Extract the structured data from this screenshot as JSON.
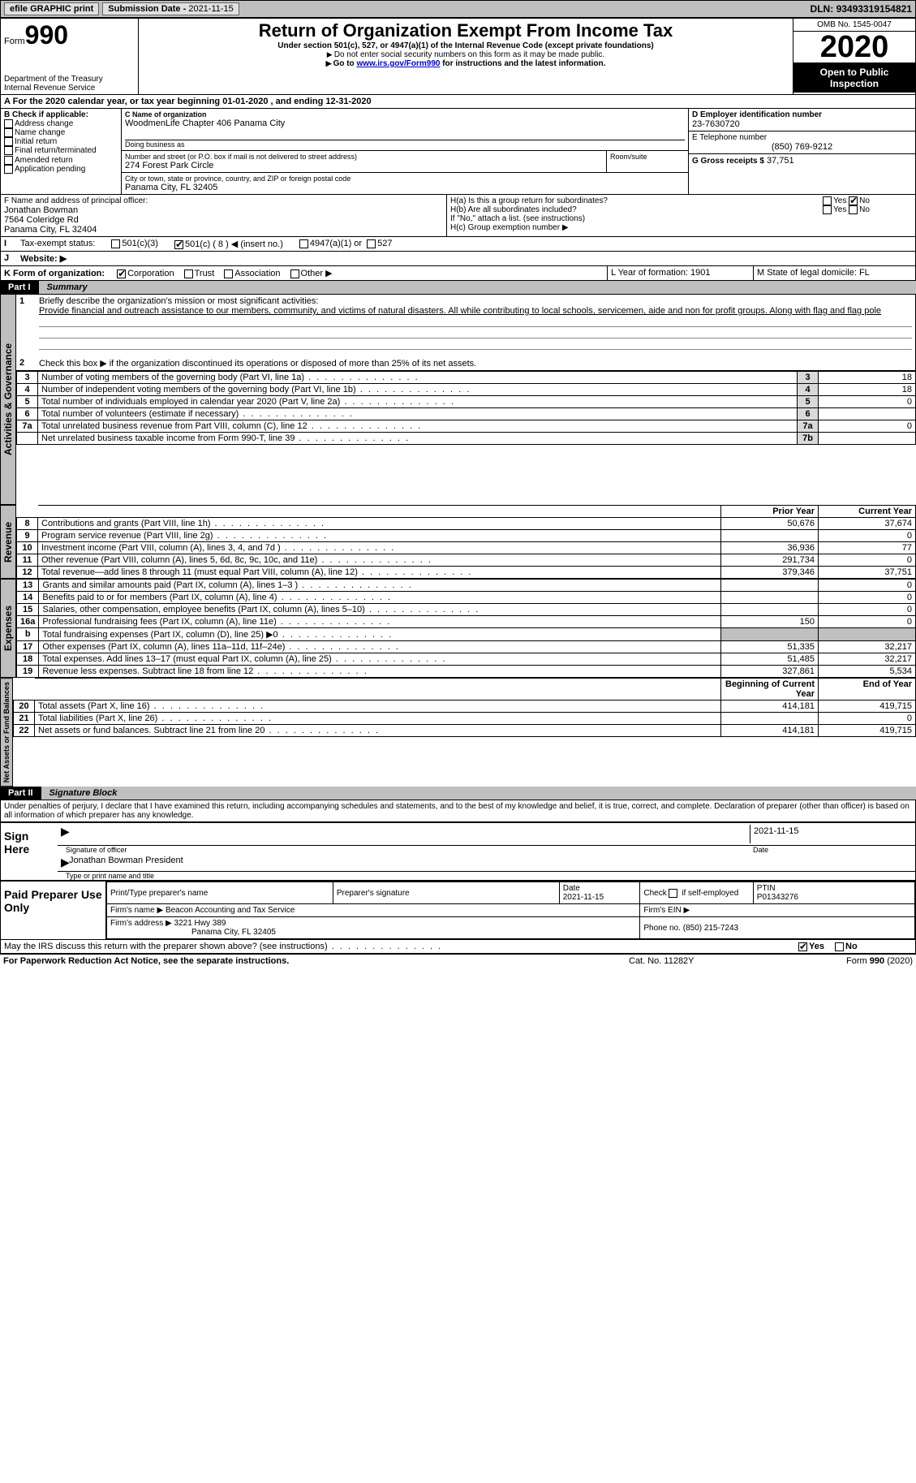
{
  "topbar": {
    "efile": "efile GRAPHIC print",
    "sub_label": "Submission Date -",
    "sub_date": "2021-11-15",
    "dln_label": "DLN:",
    "dln": "93493319154821"
  },
  "header": {
    "form_word": "Form",
    "form_no": "990",
    "dept1": "Department of the Treasury",
    "dept2": "Internal Revenue Service",
    "title": "Return of Organization Exempt From Income Tax",
    "subtitle": "Under section 501(c), 527, or 4947(a)(1) of the Internal Revenue Code (except private foundations)",
    "note1": "Do not enter social security numbers on this form as it may be made public.",
    "note2_pre": "Go to ",
    "note2_link": "www.irs.gov/Form990",
    "note2_post": " for instructions and the latest information.",
    "omb": "OMB No. 1545-0047",
    "year": "2020",
    "open": "Open to Public Inspection"
  },
  "periodA": "For the 2020 calendar year, or tax year beginning 01-01-2020    , and ending 12-31-2020",
  "boxB": {
    "title": "B Check if applicable:",
    "items": [
      "Address change",
      "Name change",
      "Initial return",
      "Final return/terminated",
      "Amended return",
      "Application pending"
    ]
  },
  "boxC": {
    "label": "C Name of organization",
    "name": "WoodmenLife Chapter 406 Panama City",
    "dba": "Doing business as",
    "addr_label": "Number and street (or P.O. box if mail is not delivered to street address)",
    "addr": "274 Forest Park Circle",
    "room_label": "Room/suite",
    "city_label": "City or town, state or province, country, and ZIP or foreign postal code",
    "city": "Panama City, FL  32405"
  },
  "boxD": {
    "label": "D Employer identification number",
    "val": "23-7630720"
  },
  "boxE": {
    "label": "E Telephone number",
    "val": "(850) 769-9212"
  },
  "boxG": {
    "label": "G Gross receipts $",
    "val": "37,751"
  },
  "boxF": {
    "label": "F  Name and address of principal officer:",
    "name": "Jonathan Bowman",
    "addr1": "7564 Coleridge Rd",
    "addr2": "Panama City, FL  32404"
  },
  "boxH": {
    "ha": "H(a)  Is this a group return for subordinates?",
    "hb": "H(b)  Are all subordinates included?",
    "hb_note": "If \"No,\" attach a list. (see instructions)",
    "hc": "H(c)  Group exemption number ▶",
    "yes": "Yes",
    "no": "No"
  },
  "boxI": {
    "label": "Tax-exempt status:",
    "opt1": "501(c)(3)",
    "opt2": "501(c) ( 8 ) ◀ (insert no.)",
    "opt3": "4947(a)(1) or",
    "opt4": "527"
  },
  "boxJ": "Website: ▶",
  "boxK": {
    "label": "K Form of organization:",
    "opts": [
      "Corporation",
      "Trust",
      "Association",
      "Other ▶"
    ]
  },
  "boxL": "L Year of formation: 1901",
  "boxM": "M State of legal domicile: FL",
  "part1": {
    "label": "Part I",
    "title": "Summary"
  },
  "summary": {
    "q1_label": "Briefly describe the organization's mission or most significant activities:",
    "q1_text": "Provide financial and outreach assistance to our members, community, and victims of natural disasters. All while contributing to local schools, servicemen, aide and non for profit groups. Along with flag and flag pole",
    "q2": "Check this box ▶      if the organization discontinued its operations or disposed of more than 25% of its net assets.",
    "rows_ag": [
      {
        "n": "3",
        "t": "Number of voting members of the governing body (Part VI, line 1a)",
        "box": "3",
        "v": "18"
      },
      {
        "n": "4",
        "t": "Number of independent voting members of the governing body (Part VI, line 1b)",
        "box": "4",
        "v": "18"
      },
      {
        "n": "5",
        "t": "Total number of individuals employed in calendar year 2020 (Part V, line 2a)",
        "box": "5",
        "v": "0"
      },
      {
        "n": "6",
        "t": "Total number of volunteers (estimate if necessary)",
        "box": "6",
        "v": ""
      },
      {
        "n": "7a",
        "t": "Total unrelated business revenue from Part VIII, column (C), line 12",
        "box": "7a",
        "v": "0"
      },
      {
        "n": "",
        "t": "Net unrelated business taxable income from Form 990-T, line 39",
        "box": "7b",
        "v": ""
      }
    ],
    "col_prior": "Prior Year",
    "col_current": "Current Year",
    "rows_rev": [
      {
        "n": "8",
        "t": "Contributions and grants (Part VIII, line 1h)",
        "p": "50,676",
        "c": "37,674"
      },
      {
        "n": "9",
        "t": "Program service revenue (Part VIII, line 2g)",
        "p": "",
        "c": "0"
      },
      {
        "n": "10",
        "t": "Investment income (Part VIII, column (A), lines 3, 4, and 7d )",
        "p": "36,936",
        "c": "77"
      },
      {
        "n": "11",
        "t": "Other revenue (Part VIII, column (A), lines 5, 6d, 8c, 9c, 10c, and 11e)",
        "p": "291,734",
        "c": "0"
      },
      {
        "n": "12",
        "t": "Total revenue—add lines 8 through 11 (must equal Part VIII, column (A), line 12)",
        "p": "379,346",
        "c": "37,751"
      }
    ],
    "rows_exp": [
      {
        "n": "13",
        "t": "Grants and similar amounts paid (Part IX, column (A), lines 1–3 )",
        "p": "",
        "c": "0"
      },
      {
        "n": "14",
        "t": "Benefits paid to or for members (Part IX, column (A), line 4)",
        "p": "",
        "c": "0"
      },
      {
        "n": "15",
        "t": "Salaries, other compensation, employee benefits (Part IX, column (A), lines 5–10)",
        "p": "",
        "c": "0"
      },
      {
        "n": "16a",
        "t": "Professional fundraising fees (Part IX, column (A), line 11e)",
        "p": "150",
        "c": "0"
      },
      {
        "n": "b",
        "t": "Total fundraising expenses (Part IX, column (D), line 25) ▶0",
        "p": "SHADE",
        "c": "SHADE"
      },
      {
        "n": "17",
        "t": "Other expenses (Part IX, column (A), lines 11a–11d, 11f–24e)",
        "p": "51,335",
        "c": "32,217"
      },
      {
        "n": "18",
        "t": "Total expenses. Add lines 13–17 (must equal Part IX, column (A), line 25)",
        "p": "51,485",
        "c": "32,217"
      },
      {
        "n": "19",
        "t": "Revenue less expenses. Subtract line 18 from line 12",
        "p": "327,861",
        "c": "5,534"
      }
    ],
    "col_begin": "Beginning of Current Year",
    "col_end": "End of Year",
    "rows_na": [
      {
        "n": "20",
        "t": "Total assets (Part X, line 16)",
        "p": "414,181",
        "c": "419,715"
      },
      {
        "n": "21",
        "t": "Total liabilities (Part X, line 26)",
        "p": "",
        "c": "0"
      },
      {
        "n": "22",
        "t": "Net assets or fund balances. Subtract line 21 from line 20",
        "p": "414,181",
        "c": "419,715"
      }
    ]
  },
  "vtabs": {
    "ag": "Activities & Governance",
    "rev": "Revenue",
    "exp": "Expenses",
    "na": "Net Assets or Fund Balances"
  },
  "part2": {
    "label": "Part II",
    "title": "Signature Block"
  },
  "sig": {
    "declaration": "Under penalties of perjury, I declare that I have examined this return, including accompanying schedules and statements, and to the best of my knowledge and belief, it is true, correct, and complete. Declaration of preparer (other than officer) is based on all information of which preparer has any knowledge.",
    "sign_here": "Sign Here",
    "sig_officer": "Signature of officer",
    "date": "Date",
    "date_val": "2021-11-15",
    "name_title": "Jonathan Bowman  President",
    "name_title_label": "Type or print name and title"
  },
  "paid": {
    "label": "Paid Preparer Use Only",
    "h1": "Print/Type preparer's name",
    "h2": "Preparer's signature",
    "h3": "Date",
    "h3v": "2021-11-15",
    "h4a": "Check",
    "h4b": "if self-employed",
    "h5": "PTIN",
    "h5v": "P01343276",
    "firm_name_l": "Firm's name   ▶",
    "firm_name": "Beacon Accounting and Tax Service",
    "firm_ein_l": "Firm's EIN ▶",
    "firm_addr_l": "Firm's address ▶",
    "firm_addr1": "3221 Hwy 389",
    "firm_addr2": "Panama City, FL  32405",
    "phone_l": "Phone no.",
    "phone": "(850) 215-7243"
  },
  "discuss": {
    "q": "May the IRS discuss this return with the preparer shown above? (see instructions)",
    "yes": "Yes",
    "no": "No"
  },
  "footer": {
    "left": "For Paperwork Reduction Act Notice, see the separate instructions.",
    "mid": "Cat. No. 11282Y",
    "right": "Form 990 (2020)"
  },
  "letters": {
    "b": "b",
    "I": "I",
    "J": "J",
    "A": "A",
    "one": "1",
    "two": "2"
  }
}
